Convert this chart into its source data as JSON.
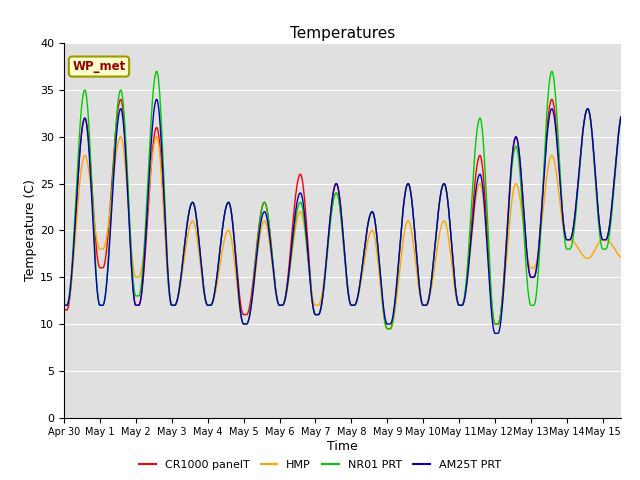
{
  "title": "Temperatures",
  "xlabel": "Time",
  "ylabel": "Temperature (C)",
  "ylim": [
    0,
    40
  ],
  "yticks": [
    0,
    5,
    10,
    15,
    20,
    25,
    30,
    35,
    40
  ],
  "x_tick_labels": [
    "Apr 30",
    "May 1",
    "May 2",
    "May 3",
    "May 4",
    "May 5",
    "May 6",
    "May 7",
    "May 8",
    "May 9",
    "May 10",
    "May 11",
    "May 12",
    "May 13",
    "May 14",
    "May 15"
  ],
  "legend_labels": [
    "CR1000 panelT",
    "HMP",
    "NR01 PRT",
    "AM25T PRT"
  ],
  "annotation_text": "WP_met",
  "annotation_color": "#990000",
  "annotation_bg": "#ffffcc",
  "annotation_border": "#999900",
  "bg_color": "#e0e0e0",
  "series_colors": [
    "#ff0000",
    "#ffa500",
    "#00cc00",
    "#0000bb"
  ],
  "total_days": 15.5,
  "cr1000_peaks": [
    32,
    34,
    31,
    23,
    23,
    23,
    26,
    25,
    22,
    25,
    25,
    28,
    30,
    34,
    33,
    33
  ],
  "cr1000_troughs": [
    11.5,
    16,
    12,
    12,
    12,
    11,
    12,
    11,
    12,
    9.5,
    12,
    12,
    10,
    15,
    19
  ],
  "hmp_peaks": [
    28,
    30,
    30,
    21,
    20,
    21,
    22,
    24,
    20,
    21,
    21,
    25,
    25,
    28,
    17,
    17
  ],
  "hmp_troughs": [
    12,
    18,
    15,
    12,
    12,
    10,
    12,
    12,
    12,
    9.5,
    12,
    12,
    10,
    16,
    19
  ],
  "nr01_peaks": [
    35,
    35,
    37,
    23,
    23,
    23,
    23,
    24,
    22,
    25,
    25,
    32,
    29,
    37,
    33,
    33
  ],
  "nr01_troughs": [
    12,
    12,
    13,
    12,
    12,
    10,
    12,
    11,
    12,
    9.5,
    12,
    12,
    10,
    12,
    18
  ],
  "am25_peaks": [
    32,
    33,
    34,
    23,
    23,
    22,
    24,
    25,
    22,
    25,
    25,
    26,
    30,
    33,
    33,
    33
  ],
  "am25_troughs": [
    12,
    12,
    12,
    12,
    12,
    10,
    12,
    11,
    12,
    10,
    12,
    12,
    9,
    15,
    19
  ]
}
